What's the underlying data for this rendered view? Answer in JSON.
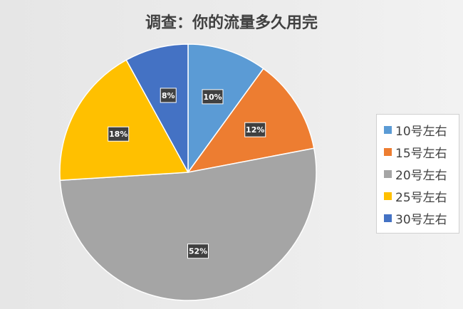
{
  "chart_data": {
    "type": "pie",
    "title": "调查：你的流量多久用完",
    "categories": [
      "10号左右",
      "15号左右",
      "20号左右",
      "25号左右",
      "30号左右"
    ],
    "values": [
      10,
      12,
      52,
      18,
      8
    ],
    "data_labels": [
      "10%",
      "12%",
      "52%",
      "18%",
      "8%"
    ],
    "colors": [
      "#5b9bd5",
      "#ed7d31",
      "#a5a5a5",
      "#ffc000",
      "#4472c4"
    ],
    "legend_position": "right"
  }
}
